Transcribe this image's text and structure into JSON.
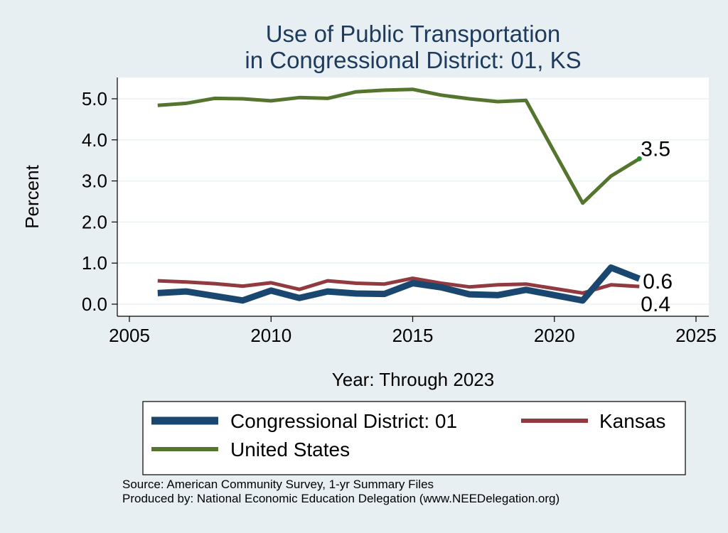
{
  "chart_data": {
    "type": "line",
    "title_lines": [
      "Use of Public Transportation",
      "in Congressional District: 01, KS"
    ],
    "xlabel": "Year: Through 2023",
    "ylabel": "Percent",
    "xlim": [
      2005,
      2025
    ],
    "ylim": [
      0,
      5.5
    ],
    "x_ticks": [
      2005,
      2010,
      2015,
      2020,
      2025
    ],
    "x_tick_labels": [
      "2005",
      "2010",
      "2015",
      "2020",
      "2025"
    ],
    "y_ticks": [
      0,
      1,
      2,
      3,
      4,
      5
    ],
    "y_tick_labels": [
      "0.0",
      "1.0",
      "2.0",
      "3.0",
      "4.0",
      "5.0"
    ],
    "grid": true,
    "x": [
      2006,
      2007,
      2008,
      2009,
      2010,
      2011,
      2012,
      2013,
      2014,
      2015,
      2016,
      2017,
      2018,
      2019,
      2020,
      2021,
      2022,
      2023
    ],
    "series": [
      {
        "name": "United States",
        "color": "#55752f",
        "values": [
          4.84,
          4.89,
          5.01,
          5.0,
          4.95,
          5.03,
          5.01,
          5.17,
          5.21,
          5.23,
          5.09,
          5.0,
          4.93,
          4.96,
          3.7,
          2.46,
          3.12,
          3.54
        ],
        "end_label": "3.5"
      },
      {
        "name": "Kansas",
        "color": "#913a3f",
        "values": [
          0.57,
          0.54,
          0.5,
          0.44,
          0.52,
          0.36,
          0.57,
          0.51,
          0.49,
          0.63,
          0.51,
          0.42,
          0.47,
          0.49,
          0.38,
          0.27,
          0.47,
          0.43
        ],
        "end_label": "0.4"
      },
      {
        "name": "Congressional District: 01",
        "color": "#1a476f",
        "values": [
          0.27,
          0.31,
          0.2,
          0.09,
          0.33,
          0.15,
          0.31,
          0.26,
          0.25,
          0.51,
          0.41,
          0.24,
          0.22,
          0.35,
          0.22,
          0.09,
          0.89,
          0.62
        ],
        "end_label": "0.6"
      }
    ],
    "legend": {
      "position": "bottom",
      "entries": [
        "Congressional District: 01",
        "Kansas",
        "United States"
      ]
    },
    "notes": [
      "Source: American Community Survey, 1-yr Summary Files",
      "Produced by: National Economic Education Delegation (www.NEEDelegation.org)"
    ]
  }
}
